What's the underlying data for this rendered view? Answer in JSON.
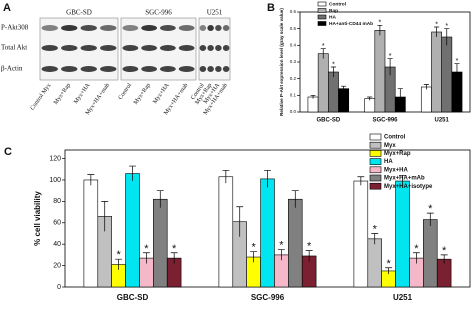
{
  "blot": {
    "panel_label": "A",
    "cell_lines": [
      "GBC-SD",
      "SGC-996",
      "U251"
    ],
    "rows": [
      "P-Akt308",
      "Total Akt",
      "β-Actin"
    ],
    "lanes": [
      "Control Myx",
      "Myx+Rap",
      "Myx+HA",
      "Myx+HA+mab",
      "Control",
      "Myx+Rap",
      "Myx+HA",
      "Myx+HA+mab",
      "Control",
      "Myx+Rap",
      "Myx+HA",
      "Myx+HA+mab"
    ]
  },
  "chart_data": [
    {
      "type": "bar",
      "panel_label": "B",
      "y_label": "Relative P-Akt expression level (gray scale value)",
      "categories": [
        "GBC-SD",
        "SGC-996",
        "U251"
      ],
      "series": [
        {
          "name": "Control",
          "color": "#ffffff",
          "values": [
            0.09,
            0.08,
            0.15
          ],
          "errors": [
            0.01,
            0.01,
            0.015
          ],
          "annotations": [
            null,
            null,
            null
          ]
        },
        {
          "name": "Rap",
          "color": "#b0b0b0",
          "values": [
            0.35,
            0.49,
            0.48
          ],
          "errors": [
            0.03,
            0.03,
            0.03
          ],
          "annotations": [
            "*",
            "*",
            "*"
          ]
        },
        {
          "name": "HA",
          "color": "#707070",
          "values": [
            0.24,
            0.27,
            0.45
          ],
          "errors": [
            0.03,
            0.05,
            0.05
          ],
          "annotations": [
            "*",
            "*",
            "*"
          ]
        },
        {
          "name": "HA+anti-CD44 mAb",
          "color": "#000000",
          "values": [
            0.14,
            0.09,
            0.24
          ],
          "errors": [
            0.015,
            0.05,
            0.05
          ],
          "annotations": [
            null,
            null,
            "*"
          ]
        }
      ],
      "ylim": [
        0,
        0.6
      ],
      "yticks": [
        {
          "value": 0,
          "label": "0.0"
        },
        0.1,
        0.2,
        0.3,
        0.4,
        0.5,
        0.6
      ],
      "legend": "upper left"
    },
    {
      "type": "bar",
      "panel_label": "C",
      "y_label": "% cell viability",
      "categories": [
        "GBC-SD",
        "SGC-996",
        "U251"
      ],
      "series": [
        {
          "name": "Control",
          "color": "#ffffff",
          "values": [
            100,
            103,
            99
          ],
          "errors": [
            5,
            6,
            4
          ],
          "annotations": [
            null,
            null,
            null
          ]
        },
        {
          "name": "Myx",
          "color": "#c0c0c0",
          "values": [
            66,
            61,
            45
          ],
          "errors": [
            14,
            14,
            5
          ],
          "annotations": [
            null,
            null,
            "*"
          ]
        },
        {
          "name": "Myx+Rap",
          "color": "#ffff00",
          "values": [
            21,
            28,
            15
          ],
          "errors": [
            5,
            5,
            3
          ],
          "annotations": [
            "*",
            "*",
            "*"
          ]
        },
        {
          "name": "HA",
          "color": "#00e5f0",
          "values": [
            106,
            101,
            99
          ],
          "errors": [
            7,
            8,
            5
          ],
          "annotations": [
            null,
            null,
            null
          ]
        },
        {
          "name": "Myx+HA",
          "color": "#f4b8c8",
          "values": [
            27,
            30,
            27
          ],
          "errors": [
            5,
            5,
            5
          ],
          "annotations": [
            "*",
            "*",
            "*"
          ]
        },
        {
          "name": "Myx+HA+mAb",
          "color": "#808080",
          "values": [
            82,
            82,
            63
          ],
          "errors": [
            8,
            8,
            6
          ],
          "annotations": [
            null,
            null,
            "*"
          ]
        },
        {
          "name": "Myx+HA+isotype",
          "color": "#7a2030",
          "values": [
            27,
            29,
            26
          ],
          "errors": [
            5,
            5,
            4
          ],
          "annotations": [
            "*",
            "*",
            "*"
          ]
        }
      ],
      "ylim": [
        0,
        128
      ],
      "yticks": [
        0,
        20,
        40,
        60,
        80,
        100,
        120
      ],
      "legend": "upper right"
    }
  ]
}
